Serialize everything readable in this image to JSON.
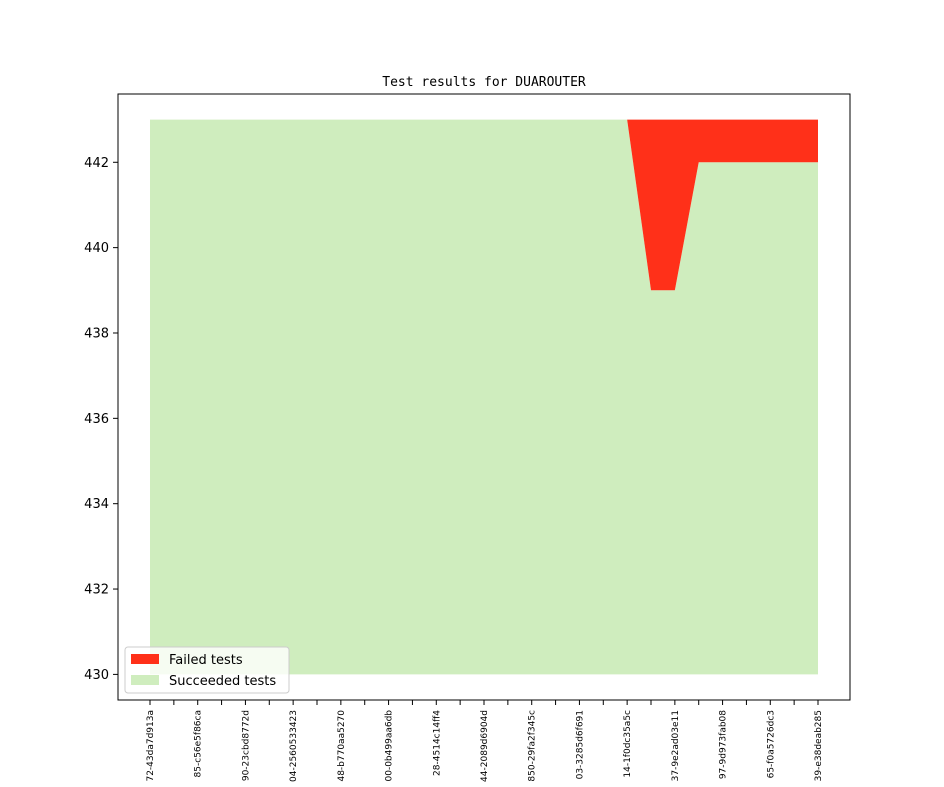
{
  "chart_data": {
    "type": "area",
    "title": "Test results for DUAROUTER",
    "xlabel": "",
    "ylabel": "",
    "ylim": [
      429.4,
      443.6
    ],
    "yticks": [
      430,
      432,
      434,
      436,
      438,
      440,
      442
    ],
    "x_tick_labels": [
      "72-43da7d913a",
      "85-c56e5f86ca",
      "90-23cbd8772d",
      "04-2560533423",
      "48-b770aa5270",
      "00-0b499aa6db",
      "28-4514c14ff4",
      "44-2089d6904d",
      "850-29fa2f345c",
      "03-3285d6f691",
      "14-1f0dc35a5c",
      "37-9e2ad03e11",
      "97-9d973fab08",
      "65-f0a5726dc3",
      "39-e38deab285"
    ],
    "series": [
      {
        "name": "Failed tests",
        "color": "#ff3019",
        "values": [
          0,
          0,
          0,
          0,
          0,
          0,
          0,
          0,
          0,
          0,
          0,
          0,
          0,
          0,
          0,
          0,
          0,
          0,
          0,
          0,
          0,
          4,
          4,
          1,
          1,
          1,
          1,
          1,
          1
        ]
      },
      {
        "name": "Succeeded tests",
        "color": "#cfedbe",
        "values": [
          443,
          443,
          443,
          443,
          443,
          443,
          443,
          443,
          443,
          443,
          443,
          443,
          443,
          443,
          443,
          443,
          443,
          443,
          443,
          443,
          443,
          439,
          439,
          442,
          442,
          442,
          442,
          442,
          442
        ]
      }
    ],
    "baseline": 430,
    "legend": "bottom-left",
    "grid": false
  }
}
